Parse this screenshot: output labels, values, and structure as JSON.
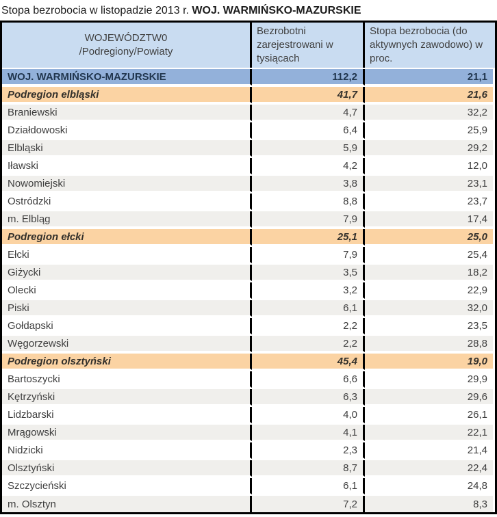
{
  "page_title": {
    "prefix": "Stopa bezrobocia w listopadzie 2013 r. ",
    "highlight": "WOJ. WARMIŃSKO-MAZURSKIE"
  },
  "table": {
    "header": {
      "col1_line1": "WOJEWÓDZTW0",
      "col1_line2": "/Podregiony/Powiaty",
      "col2": "Bezrobotni zarejestrowani  w tysiącach",
      "col3": "Stopa bezrobocia  (do aktywnych zawodowo) w  proc."
    },
    "rows": [
      {
        "name": "WOJ. WARMIŃSKO-MAZURSKIE",
        "thousands": "112,2",
        "rate": "21,1",
        "style": "voivodeship"
      },
      {
        "name": "Podregion elbląski",
        "thousands": "41,7",
        "rate": "21,6",
        "style": "region"
      },
      {
        "name": "Braniewski",
        "thousands": "4,7",
        "rate": "32,2",
        "style": "stripe"
      },
      {
        "name": "Działdowoski",
        "thousands": "6,4",
        "rate": "25,9",
        "style": "plain"
      },
      {
        "name": "Elbląski",
        "thousands": "5,9",
        "rate": "29,2",
        "style": "stripe"
      },
      {
        "name": "Iławski",
        "thousands": "4,2",
        "rate": "12,0",
        "style": "plain"
      },
      {
        "name": "Nowomiejski",
        "thousands": "3,8",
        "rate": "23,1",
        "style": "stripe"
      },
      {
        "name": "Ostródzki",
        "thousands": "8,8",
        "rate": "23,7",
        "style": "plain"
      },
      {
        "name": "m. Elbląg",
        "thousands": "7,9",
        "rate": "17,4",
        "style": "stripe"
      },
      {
        "name": "Podregion ełcki",
        "thousands": "25,1",
        "rate": "25,0",
        "style": "region"
      },
      {
        "name": "Ełcki",
        "thousands": "7,9",
        "rate": "25,4",
        "style": "plain"
      },
      {
        "name": "Giżycki",
        "thousands": "3,5",
        "rate": "18,2",
        "style": "stripe"
      },
      {
        "name": "Olecki",
        "thousands": "3,2",
        "rate": "22,9",
        "style": "plain"
      },
      {
        "name": "Piski",
        "thousands": "6,1",
        "rate": "32,0",
        "style": "stripe"
      },
      {
        "name": "Gołdapski",
        "thousands": "2,2",
        "rate": "23,5",
        "style": "plain"
      },
      {
        "name": "Węgorzewski",
        "thousands": "2,2",
        "rate": "28,8",
        "style": "stripe"
      },
      {
        "name": "Podregion olsztyński",
        "thousands": "45,4",
        "rate": "19,0",
        "style": "region"
      },
      {
        "name": "Bartoszycki",
        "thousands": "6,6",
        "rate": "29,9",
        "style": "plain"
      },
      {
        "name": "Kętrzyński",
        "thousands": "6,3",
        "rate": "29,6",
        "style": "stripe"
      },
      {
        "name": "Lidzbarski",
        "thousands": "4,0",
        "rate": "26,1",
        "style": "plain"
      },
      {
        "name": "Mrągowski",
        "thousands": "4,1",
        "rate": "22,1",
        "style": "stripe"
      },
      {
        "name": "Nidzicki",
        "thousands": "2,3",
        "rate": "21,4",
        "style": "plain"
      },
      {
        "name": "Olsztyński",
        "thousands": "8,7",
        "rate": "22,4",
        "style": "stripe"
      },
      {
        "name": "Szczycieński",
        "thousands": "6,1",
        "rate": "24,8",
        "style": "plain"
      },
      {
        "name": "m. Olsztyn",
        "thousands": "7,2",
        "rate": "8,3",
        "style": "stripe"
      }
    ]
  },
  "colors": {
    "header_bg": "#C9DCF1",
    "voivodeship_row_bg": "#93B1DA",
    "region_row_bg": "#FBD3A3",
    "stripe_row_bg": "#F0EFEC",
    "plain_row_bg": "#FFFFFF",
    "grid_border": "#000000"
  },
  "chart_data": {
    "type": "table",
    "title": "Stopa bezrobocia w listopadzie 2013 r. WOJ. WARMIŃSKO-MAZURSKIE",
    "columns": [
      "WOJEWÓDZTW0 /Podregiony/Powiaty",
      "Bezrobotni zarejestrowani w tysiącach",
      "Stopa bezrobocia (do aktywnych zawodowo) w proc."
    ],
    "rows": [
      [
        "WOJ. WARMIŃSKO-MAZURSKIE",
        112.2,
        21.1
      ],
      [
        "Podregion elbląski",
        41.7,
        21.6
      ],
      [
        "Braniewski",
        4.7,
        32.2
      ],
      [
        "Działdowoski",
        6.4,
        25.9
      ],
      [
        "Elbląski",
        5.9,
        29.2
      ],
      [
        "Iławski",
        4.2,
        12.0
      ],
      [
        "Nowomiejski",
        3.8,
        23.1
      ],
      [
        "Ostródzki",
        8.8,
        23.7
      ],
      [
        "m. Elbląg",
        7.9,
        17.4
      ],
      [
        "Podregion ełcki",
        25.1,
        25.0
      ],
      [
        "Ełcki",
        7.9,
        25.4
      ],
      [
        "Giżycki",
        3.5,
        18.2
      ],
      [
        "Olecki",
        3.2,
        22.9
      ],
      [
        "Piski",
        6.1,
        32.0
      ],
      [
        "Gołdapski",
        2.2,
        23.5
      ],
      [
        "Węgorzewski",
        2.2,
        28.8
      ],
      [
        "Podregion olsztyński",
        45.4,
        19.0
      ],
      [
        "Bartoszycki",
        6.6,
        29.9
      ],
      [
        "Kętrzyński",
        6.3,
        29.6
      ],
      [
        "Lidzbarski",
        4.0,
        26.1
      ],
      [
        "Mrągowski",
        4.1,
        22.1
      ],
      [
        "Nidzicki",
        2.3,
        21.4
      ],
      [
        "Olsztyński",
        8.7,
        22.4
      ],
      [
        "Szczycieński",
        6.1,
        24.8
      ],
      [
        "m. Olsztyn",
        7.2,
        8.3
      ]
    ]
  }
}
